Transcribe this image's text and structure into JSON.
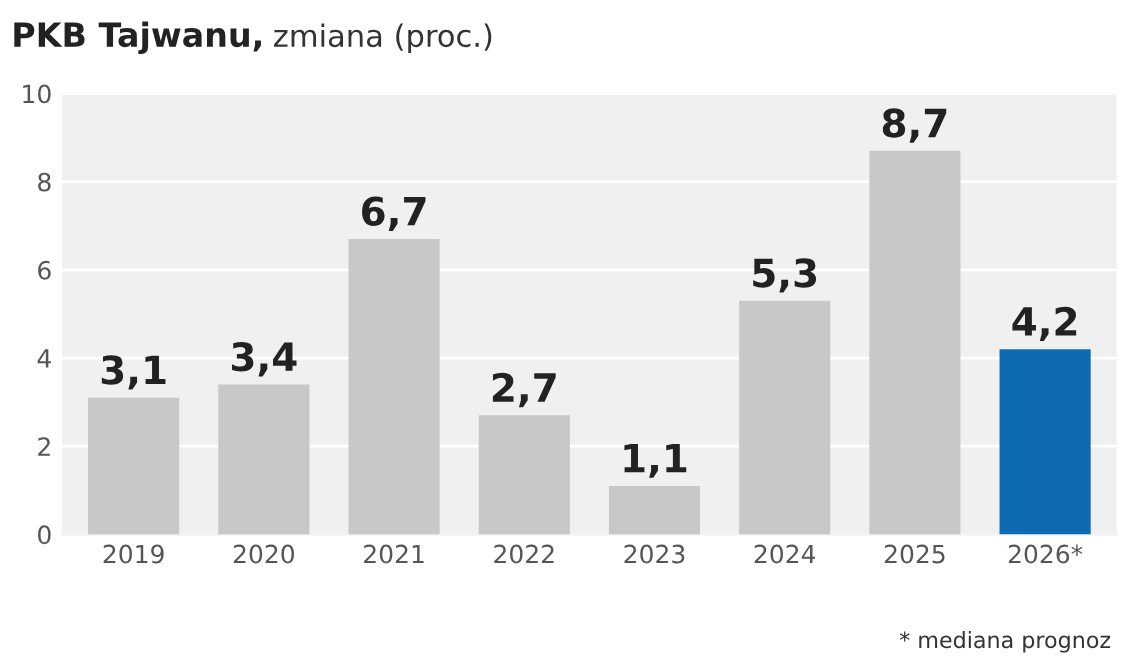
{
  "chart_data": {
    "type": "bar",
    "title": "PKB Tajwanu,",
    "subtitle": "zmiana (proc.)",
    "categories": [
      "2019",
      "2020",
      "2021",
      "2022",
      "2023",
      "2024",
      "2025",
      "2026*"
    ],
    "values": [
      3.1,
      3.4,
      6.7,
      2.7,
      1.1,
      5.3,
      8.7,
      4.2
    ],
    "colors": [
      "#c8c8c8",
      "#c8c8c8",
      "#c8c8c8",
      "#c8c8c8",
      "#c8c8c8",
      "#c8c8c8",
      "#c8c8c8",
      "#0f6ab4"
    ],
    "value_labels": [
      "3,1",
      "3,4",
      "6,7",
      "2,7",
      "1,1",
      "5,3",
      "8,7",
      "4,2"
    ],
    "ylim": [
      0,
      10
    ],
    "yticks": [
      0,
      2,
      4,
      6,
      8,
      10
    ],
    "grid": "y",
    "annotations": [
      "* mediana prognoz"
    ]
  }
}
